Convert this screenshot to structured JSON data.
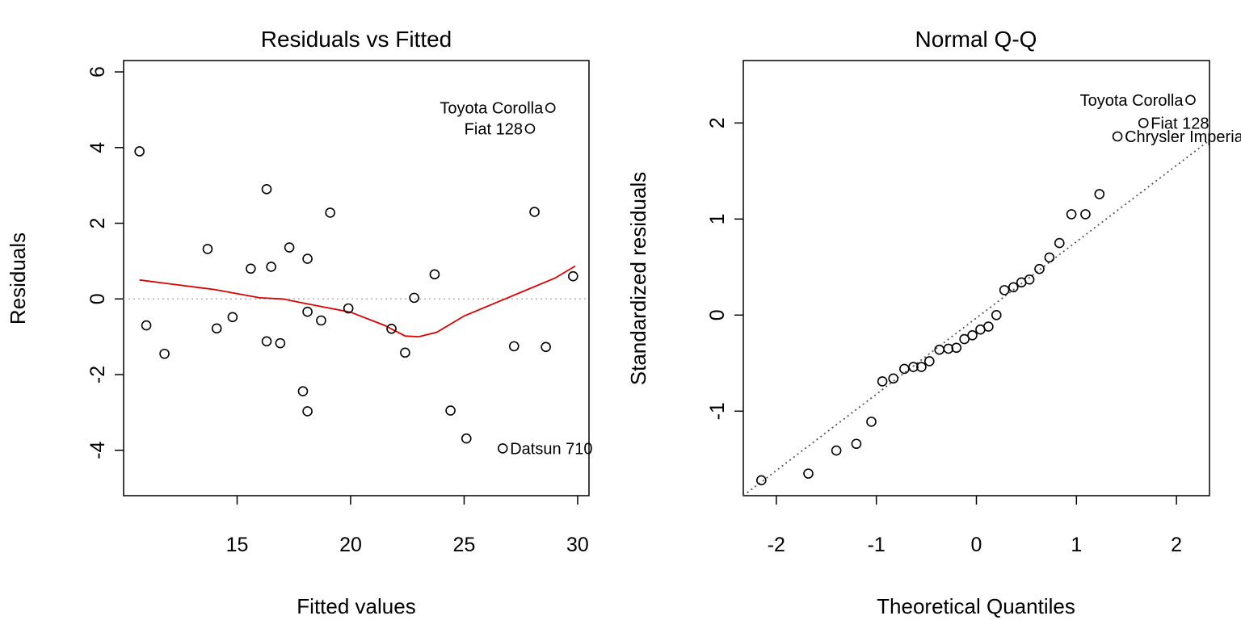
{
  "chart_data": [
    {
      "type": "scatter",
      "title": "Residuals vs Fitted",
      "xlabel": "Fitted values",
      "ylabel": "Residuals",
      "xlim": [
        10.0,
        30.5
      ],
      "ylim": [
        -5.2,
        6.3
      ],
      "xticks": [
        "15",
        "20",
        "25",
        "30"
      ],
      "yticks": [
        "-4",
        "-2",
        "0",
        "2",
        "4",
        "6"
      ],
      "reference_line": {
        "y": 0,
        "style": "dotted",
        "color": "#bebebe"
      },
      "points": [
        {
          "x": 10.7,
          "y": 3.9
        },
        {
          "x": 11.0,
          "y": -0.7
        },
        {
          "x": 11.8,
          "y": -1.45
        },
        {
          "x": 13.7,
          "y": 1.32
        },
        {
          "x": 14.1,
          "y": -0.78
        },
        {
          "x": 14.8,
          "y": -0.48
        },
        {
          "x": 15.6,
          "y": 0.8
        },
        {
          "x": 16.3,
          "y": 2.9
        },
        {
          "x": 16.3,
          "y": -1.12
        },
        {
          "x": 16.5,
          "y": 0.85
        },
        {
          "x": 16.9,
          "y": -1.17
        },
        {
          "x": 17.3,
          "y": 1.36
        },
        {
          "x": 17.9,
          "y": -2.44
        },
        {
          "x": 18.1,
          "y": 1.06
        },
        {
          "x": 18.1,
          "y": -0.34
        },
        {
          "x": 18.1,
          "y": -2.97
        },
        {
          "x": 18.7,
          "y": -0.57
        },
        {
          "x": 19.1,
          "y": 2.28
        },
        {
          "x": 19.9,
          "y": -0.25
        },
        {
          "x": 21.8,
          "y": -0.79
        },
        {
          "x": 22.4,
          "y": -1.42
        },
        {
          "x": 22.8,
          "y": 0.03
        },
        {
          "x": 23.7,
          "y": 0.65
        },
        {
          "x": 24.4,
          "y": -2.95
        },
        {
          "x": 25.1,
          "y": -3.69
        },
        {
          "x": 26.7,
          "y": -3.95
        },
        {
          "x": 27.2,
          "y": -1.25
        },
        {
          "x": 27.9,
          "y": 4.5
        },
        {
          "x": 28.1,
          "y": 2.3
        },
        {
          "x": 28.6,
          "y": -1.27
        },
        {
          "x": 28.8,
          "y": 5.05
        },
        {
          "x": 29.8,
          "y": 0.6
        }
      ],
      "smooth_line": {
        "color": "#dd0000",
        "x": [
          10.7,
          12,
          14,
          16,
          17,
          18,
          20,
          21.5,
          22.4,
          23,
          23.8,
          25,
          27,
          29,
          29.9
        ],
        "y": [
          0.5,
          0.4,
          0.25,
          0.03,
          0.0,
          -0.12,
          -0.35,
          -0.7,
          -0.98,
          -1.0,
          -0.88,
          -0.45,
          0.05,
          0.55,
          0.87
        ]
      },
      "annotations": [
        {
          "label": "Toyota Corolla",
          "x": 28.8,
          "y": 5.05,
          "side": "left"
        },
        {
          "label": "Fiat 128",
          "x": 27.9,
          "y": 4.5,
          "side": "left"
        },
        {
          "label": "Datsun 710",
          "x": 26.7,
          "y": -3.95,
          "side": "right"
        }
      ]
    },
    {
      "type": "scatter",
      "title": "Normal Q-Q",
      "xlabel": "Theoretical Quantiles",
      "ylabel": "Standardized residuals",
      "xlim": [
        -2.33,
        2.33
      ],
      "ylim": [
        -1.88,
        2.65
      ],
      "xticks": [
        "-2",
        "-1",
        "0",
        "1",
        "2"
      ],
      "yticks": [
        "-1",
        "0",
        "1",
        "2"
      ],
      "reference_line": {
        "style": "dotted",
        "color": "#555555",
        "x": [
          -2.33,
          2.33
        ],
        "y": [
          -1.88,
          1.82
        ]
      },
      "points": [
        {
          "x": -2.15,
          "y": -1.72
        },
        {
          "x": -1.68,
          "y": -1.65
        },
        {
          "x": -1.4,
          "y": -1.41
        },
        {
          "x": -1.2,
          "y": -1.34
        },
        {
          "x": -1.05,
          "y": -1.11
        },
        {
          "x": -0.94,
          "y": -0.69
        },
        {
          "x": -0.83,
          "y": -0.66
        },
        {
          "x": -0.72,
          "y": -0.56
        },
        {
          "x": -0.63,
          "y": -0.54
        },
        {
          "x": -0.55,
          "y": -0.54
        },
        {
          "x": -0.47,
          "y": -0.48
        },
        {
          "x": -0.37,
          "y": -0.36
        },
        {
          "x": -0.28,
          "y": -0.35
        },
        {
          "x": -0.2,
          "y": -0.34
        },
        {
          "x": -0.12,
          "y": -0.25
        },
        {
          "x": -0.04,
          "y": -0.21
        },
        {
          "x": 0.04,
          "y": -0.15
        },
        {
          "x": 0.12,
          "y": -0.12
        },
        {
          "x": 0.2,
          "y": 0.0
        },
        {
          "x": 0.28,
          "y": 0.26
        },
        {
          "x": 0.37,
          "y": 0.29
        },
        {
          "x": 0.45,
          "y": 0.34
        },
        {
          "x": 0.53,
          "y": 0.37
        },
        {
          "x": 0.63,
          "y": 0.48
        },
        {
          "x": 0.73,
          "y": 0.6
        },
        {
          "x": 0.83,
          "y": 0.75
        },
        {
          "x": 0.95,
          "y": 1.05
        },
        {
          "x": 1.09,
          "y": 1.05
        },
        {
          "x": 1.23,
          "y": 1.26
        },
        {
          "x": 1.41,
          "y": 1.86
        },
        {
          "x": 1.67,
          "y": 2.0
        },
        {
          "x": 2.14,
          "y": 2.24
        }
      ],
      "annotations": [
        {
          "label": "Toyota Corolla",
          "x": 2.14,
          "y": 2.24,
          "side": "left"
        },
        {
          "label": "Fiat 128",
          "x": 1.67,
          "y": 2.0,
          "side": "right"
        },
        {
          "label": "Chrysler Imperial",
          "x": 1.41,
          "y": 1.86,
          "side": "right"
        }
      ]
    }
  ]
}
